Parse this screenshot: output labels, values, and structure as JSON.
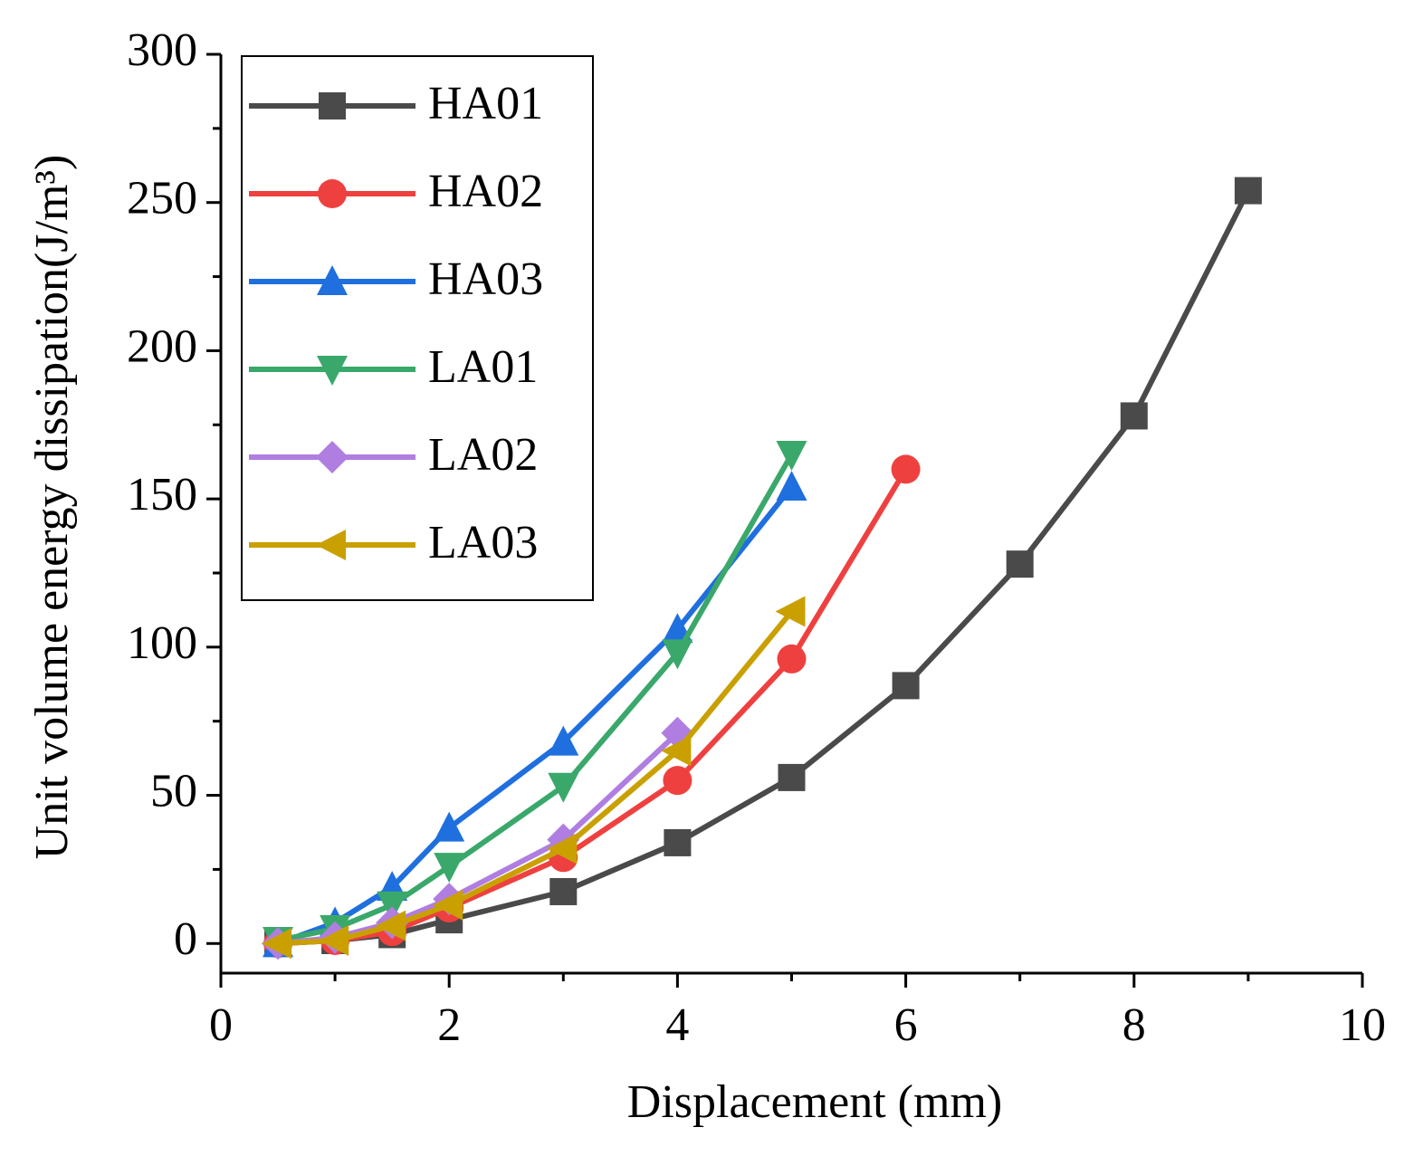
{
  "chart_data": {
    "type": "line",
    "xlabel": "Displacement (mm)",
    "ylabel": "Unit volume energy dissipation(J/m³)",
    "xlim": [
      0,
      10
    ],
    "xticks": [
      0,
      2,
      4,
      6,
      8,
      10
    ],
    "xminorticks": [
      1,
      3,
      5,
      7,
      9
    ],
    "ylim": [
      -10,
      300
    ],
    "yticks": [
      0,
      50,
      100,
      150,
      200,
      250,
      300
    ],
    "yminorticks": [
      25,
      75,
      125,
      175,
      225,
      275
    ],
    "legend": "upper left",
    "series": [
      {
        "name": "HA01",
        "color": "#4a4a4a",
        "marker": "square",
        "x": [
          0.5,
          1,
          1.5,
          2,
          3,
          4,
          5,
          6,
          7,
          8,
          9
        ],
        "values": [
          0,
          1,
          3,
          8,
          17.5,
          34,
          56,
          87,
          128,
          178,
          254
        ]
      },
      {
        "name": "HA02",
        "color": "#ef4040",
        "marker": "circle",
        "x": [
          0.5,
          1,
          1.5,
          2,
          3,
          4,
          5,
          6
        ],
        "values": [
          0,
          1,
          4,
          12,
          29,
          55,
          96,
          160
        ]
      },
      {
        "name": "HA03",
        "color": "#1f6fde",
        "marker": "triangle-up",
        "x": [
          0.5,
          1,
          1.5,
          2,
          3,
          4,
          5
        ],
        "values": [
          0,
          7,
          19,
          39,
          68,
          106,
          154
        ]
      },
      {
        "name": "LA01",
        "color": "#3aa86a",
        "marker": "triangle-down",
        "x": [
          0.5,
          1,
          1.5,
          2,
          3,
          4,
          5
        ],
        "values": [
          1,
          5,
          13,
          26,
          53,
          98,
          165
        ]
      },
      {
        "name": "LA02",
        "color": "#b07ee0",
        "marker": "diamond",
        "x": [
          0.5,
          1,
          1.5,
          2,
          3,
          4
        ],
        "values": [
          0,
          2,
          7,
          15,
          35,
          71
        ]
      },
      {
        "name": "LA03",
        "color": "#c9a000",
        "marker": "triangle-left",
        "x": [
          0.5,
          1,
          1.5,
          2,
          3,
          4,
          5
        ],
        "values": [
          0,
          1,
          6,
          13,
          32,
          65,
          112
        ]
      }
    ]
  }
}
